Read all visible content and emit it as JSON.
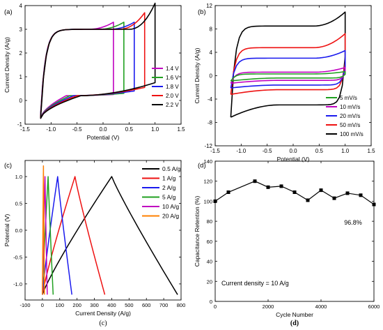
{
  "panels_caption": {
    "c": "(c)",
    "d": "(d)"
  },
  "chart_data": [
    {
      "id": "a",
      "type": "line",
      "panel_label": "(a)",
      "xlabel": "Potential (V)",
      "ylabel": "Current Density (A/g)",
      "xlim": [
        -1.5,
        1.5
      ],
      "ylim": [
        -1,
        4
      ],
      "xticks": [
        -1.5,
        -1.0,
        -0.5,
        0.0,
        0.5,
        1.0,
        1.5
      ],
      "xtick_labels": [
        "-1.5",
        "-1.0",
        "-0.5",
        "0.0",
        "0.5",
        "1.0",
        "1.5"
      ],
      "yticks": [
        -1,
        0,
        1,
        2,
        3,
        4
      ],
      "ytick_labels": [
        "-1",
        "0",
        "1",
        "2",
        "3",
        "4"
      ],
      "legend_position": "bottom-right",
      "grid": false,
      "series": [
        {
          "name": "1.4 V",
          "color": "#c000c0",
          "vmin": -1.2,
          "vmax": 0.2,
          "top_start": -0.5,
          "top_plateau": 3.0,
          "top_end": 3.3,
          "bottom_start": -0.75,
          "bottom_mid": 0.2,
          "bottom_end": 0.25
        },
        {
          "name": "1.6 V",
          "color": "#20a020",
          "vmin": -1.2,
          "vmax": 0.4,
          "top_start": -0.55,
          "top_plateau": 3.0,
          "top_end": 3.3,
          "bottom_start": -0.75,
          "bottom_mid": 0.2,
          "bottom_end": 0.3
        },
        {
          "name": "1.8 V",
          "color": "#1a1aee",
          "vmin": -1.2,
          "vmax": 0.6,
          "top_start": -0.6,
          "top_plateau": 3.0,
          "top_end": 3.3,
          "bottom_start": -0.75,
          "bottom_mid": 0.2,
          "bottom_end": 0.4
        },
        {
          "name": "2.0 V",
          "color": "#ee1111",
          "vmin": -1.2,
          "vmax": 0.8,
          "top_start": -0.65,
          "top_plateau": 3.0,
          "top_end": 3.7,
          "bottom_start": -0.75,
          "bottom_mid": 0.2,
          "bottom_end": 0.55
        },
        {
          "name": "2.2 V",
          "color": "#000000",
          "vmin": -1.2,
          "vmax": 1.0,
          "top_start": -0.7,
          "top_plateau": 3.0,
          "top_end": 4.1,
          "bottom_start": -0.75,
          "bottom_mid": 0.2,
          "bottom_end": 0.75
        }
      ]
    },
    {
      "id": "b",
      "type": "line",
      "panel_label": "(b)",
      "xlabel": "Potential (V)",
      "ylabel": "Current Density (A/g)",
      "xlim": [
        -1.5,
        1.5
      ],
      "ylim": [
        -12,
        12
      ],
      "xticks": [
        -1.5,
        -1.0,
        -0.5,
        0.0,
        0.5,
        1.0,
        1.5
      ],
      "xtick_labels": [
        "-1.5",
        "-1.0",
        "-0.5",
        "0.0",
        "0.5",
        "1.0",
        "1.5"
      ],
      "yticks": [
        -12,
        -8,
        -4,
        0,
        4,
        8,
        12
      ],
      "ytick_labels": [
        "-12",
        "-8",
        "-4",
        "0",
        "4",
        "8",
        "12"
      ],
      "legend_position": "bottom-right",
      "grid": false,
      "series": [
        {
          "name": "5 mV/s",
          "color": "#20a020",
          "top_plateau": 0.3,
          "top_end": 0.7,
          "bottom_plateau": -0.4,
          "bottom_start": -0.9
        },
        {
          "name": "10 mV/s",
          "color": "#c000c0",
          "top_plateau": 0.6,
          "top_end": 1.4,
          "bottom_plateau": -0.8,
          "bottom_start": -1.3
        },
        {
          "name": "20 mV/s",
          "color": "#1a1aee",
          "top_plateau": 3.0,
          "top_end": 4.3,
          "bottom_plateau": -1.6,
          "bottom_start": -2.1
        },
        {
          "name": "50 mV/s",
          "color": "#ee1111",
          "top_plateau": 4.8,
          "top_end": 7.2,
          "bottom_plateau": -2.4,
          "bottom_start": -3.2
        },
        {
          "name": "100 mV/s",
          "color": "#000000",
          "top_plateau": 8.5,
          "top_end": 10.9,
          "bottom_plateau": -5.0,
          "bottom_start": -7.1
        }
      ]
    },
    {
      "id": "c",
      "type": "line",
      "panel_label": "(c)",
      "xlabel": "Current Density (A/g)",
      "ylabel": "Potential (V)",
      "xlim": [
        -100,
        800
      ],
      "ylim": [
        -1.3,
        1.3
      ],
      "xticks": [
        -100,
        0,
        100,
        200,
        300,
        400,
        500,
        600,
        700,
        800
      ],
      "xtick_labels": [
        "-100",
        "0",
        "100",
        "200",
        "300",
        "400",
        "500",
        "600",
        "700",
        "800"
      ],
      "yticks": [
        -1.0,
        -0.5,
        0.0,
        0.5,
        1.0
      ],
      "ytick_labels": [
        "-1.0",
        "-0.5",
        "0.0",
        "0.5",
        "1.0"
      ],
      "legend_position": "top-right",
      "grid": false,
      "series": [
        {
          "name": "0.5 A/g",
          "color": "#000000",
          "x": [
            0,
            400,
            780
          ],
          "y": [
            -1.2,
            1.0,
            -1.2
          ]
        },
        {
          "name": "1 A/g",
          "color": "#ee1111",
          "x": [
            0,
            188,
            360
          ],
          "y": [
            -1.2,
            1.0,
            -1.2
          ]
        },
        {
          "name": "2 A/g",
          "color": "#1a1aee",
          "x": [
            0,
            88,
            170
          ],
          "y": [
            -1.2,
            1.0,
            -1.2
          ]
        },
        {
          "name": "5 A/g",
          "color": "#20a020",
          "x": [
            0,
            33,
            62
          ],
          "y": [
            -1.2,
            1.0,
            -1.2
          ]
        },
        {
          "name": "10 A/g",
          "color": "#c000c0",
          "x": [
            0,
            15,
            28
          ],
          "y": [
            -1.2,
            1.0,
            -1.2
          ]
        },
        {
          "name": "20 A/g",
          "color": "#ff8000",
          "x": [
            0,
            6,
            12
          ],
          "y": [
            -1.2,
            1.2,
            -1.2
          ]
        }
      ]
    },
    {
      "id": "d",
      "type": "line",
      "panel_label": "(d)",
      "xlabel": "Cycle Number",
      "ylabel": "Capacitance Retention (%)",
      "xlim": [
        0,
        6000
      ],
      "ylim": [
        0,
        140
      ],
      "xticks": [
        0,
        2000,
        4000,
        6000
      ],
      "xtick_labels": [
        "0",
        "2000",
        "4000",
        "6000"
      ],
      "yticks": [
        0,
        20,
        40,
        60,
        80,
        100,
        120,
        140
      ],
      "ytick_labels": [
        "0",
        "20",
        "40",
        "60",
        "80",
        "100",
        "120",
        "140"
      ],
      "grid": false,
      "annotations": {
        "final_value": "96.8%",
        "condition": "Current density = 10 A/g"
      },
      "series": [
        {
          "color": "#000000",
          "x": [
            0,
            500,
            1500,
            2000,
            2500,
            3000,
            3500,
            4000,
            4500,
            5000,
            5500,
            6000
          ],
          "y": [
            100,
            109,
            120,
            114,
            115,
            109,
            101,
            111,
            103,
            108,
            106,
            96.8
          ]
        }
      ]
    }
  ]
}
